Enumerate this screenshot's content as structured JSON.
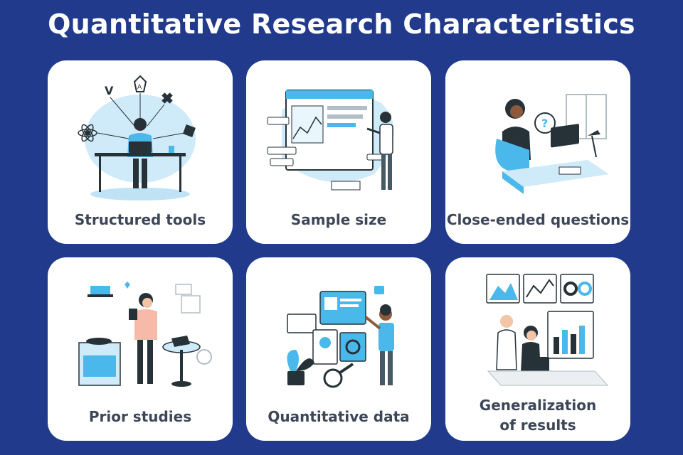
{
  "title": "Quantitative Research Characteristics",
  "colors": {
    "background": "#213a8c",
    "card": "#ffffff",
    "accent": "#4ab8ea",
    "dark": "#263238"
  },
  "cards": [
    {
      "label": "Structured tools",
      "icon": "developer-laptop-illustration"
    },
    {
      "label": "Sample size",
      "icon": "dashboard-presentation-illustration"
    },
    {
      "label": "Close-ended questions",
      "icon": "support-agent-headset-illustration"
    },
    {
      "label": "Prior studies",
      "icon": "multitasking-person-illustration"
    },
    {
      "label": "Quantitative data",
      "icon": "data-analysis-illustration"
    },
    {
      "label": "Generalization",
      "label_line2": "of results",
      "icon": "team-analytics-illustration"
    }
  ]
}
